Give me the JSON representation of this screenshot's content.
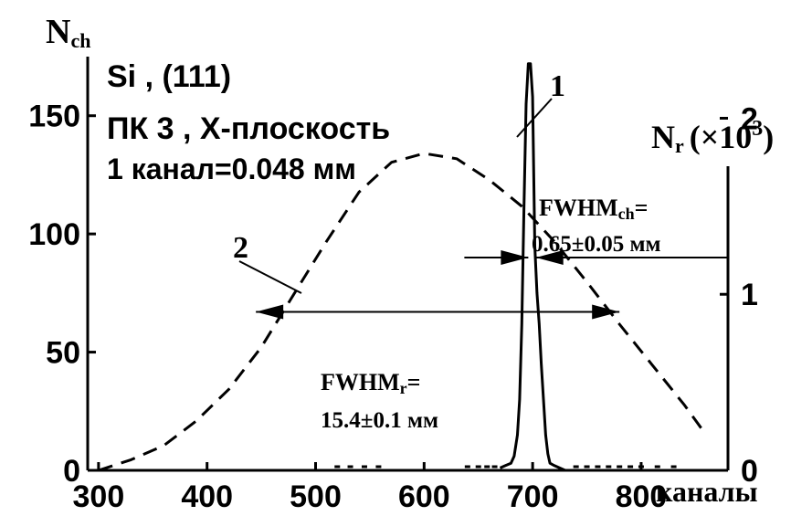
{
  "chart_data": {
    "type": "line",
    "x_axis": {
      "label": "каналы",
      "range": [
        290,
        880
      ],
      "ticks": [
        300,
        400,
        500,
        600,
        700,
        800
      ],
      "tick_labels": [
        "300",
        "400",
        "500",
        "600",
        "700",
        "800"
      ]
    },
    "y_axis_left": {
      "label_main": "N",
      "label_sub": "ch",
      "range": [
        0,
        175
      ],
      "ticks": [
        0,
        50,
        100,
        150
      ],
      "tick_labels": [
        "0",
        "50",
        "100",
        "150"
      ]
    },
    "y_axis_right": {
      "label_main": "N",
      "label_sub": "r",
      "label_unit": "(×10",
      "label_exp": "3",
      "label_close": ")",
      "range": [
        0,
        2.35
      ],
      "ticks": [
        0,
        1,
        2
      ],
      "tick_labels": [
        "0",
        "1",
        "2"
      ]
    },
    "series": [
      {
        "name": "1",
        "axis": "left",
        "style": "solid",
        "x": [
          670,
          675,
          680,
          683,
          686,
          688,
          690,
          692,
          694,
          696,
          698,
          700,
          702,
          704,
          706,
          708,
          710,
          712,
          714,
          716,
          720,
          725,
          730
        ],
        "y": [
          1,
          2,
          3,
          6,
          15,
          30,
          62,
          110,
          155,
          172,
          172,
          158,
          95,
          75,
          62,
          45,
          30,
          15,
          7,
          3,
          2,
          1,
          0
        ]
      },
      {
        "name": "2",
        "axis": "right",
        "style": "dashed",
        "x": [
          300,
          330,
          360,
          390,
          420,
          450,
          480,
          510,
          540,
          570,
          600,
          630,
          660,
          690,
          720,
          750,
          780,
          810,
          840,
          860
        ],
        "y": [
          0.0,
          0.06,
          0.14,
          0.28,
          0.46,
          0.7,
          1.0,
          1.3,
          1.58,
          1.75,
          1.8,
          1.77,
          1.65,
          1.5,
          1.3,
          1.07,
          0.83,
          0.6,
          0.37,
          0.2
        ]
      }
    ],
    "noise_x": [
      520,
      532,
      545,
      558,
      640,
      650,
      658,
      665,
      740,
      750,
      760,
      770,
      780,
      790,
      800,
      815,
      830
    ],
    "annotations": {
      "sample": "Si , (111)",
      "detector": "ПК 3 , X-плоскость",
      "scale": "1 канал=0.048 мм",
      "fwhm_ch_label": "FWHM",
      "fwhm_ch_sub": "ch",
      "fwhm_ch_eq": "=",
      "fwhm_ch_value": "0.65±0.05 мм",
      "fwhm_r_label": "FWHM",
      "fwhm_r_sub": "r",
      "fwhm_r_eq": "=",
      "fwhm_r_value": "15.4±0.1 мм",
      "curve1_label": "1",
      "curve2_label": "2"
    },
    "fwhm_ch_markers": {
      "x_left": 696,
      "x_right": 703,
      "y": 90
    },
    "fwhm_r_markers": {
      "x_left": 445,
      "x_right": 780,
      "y": 0.9
    },
    "grid": false
  }
}
